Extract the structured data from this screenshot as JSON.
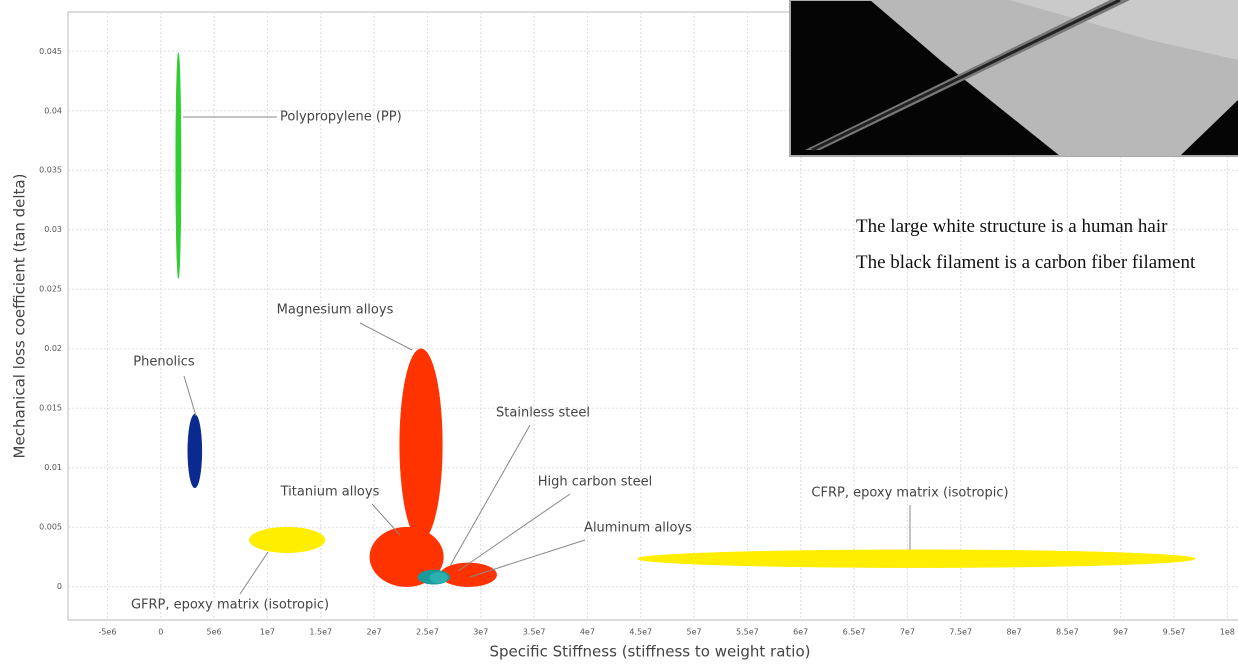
{
  "chart_data": {
    "type": "ellipse",
    "xlabel": "Specific Stiffness (stiffness to weight ratio)",
    "ylabel": "Mechanical loss coefficient (tan delta)",
    "xlim": [
      -8700000,
      101000000
    ],
    "ylim": [
      -0.0028,
      0.0483
    ],
    "xticks": [
      {
        "value": -5000000,
        "label": "-5e6"
      },
      0,
      {
        "value": 5000000,
        "label": "5e6"
      },
      {
        "value": 10000000,
        "label": "1e7"
      },
      {
        "value": 15000000,
        "label": "1.5e7"
      },
      {
        "value": 20000000,
        "label": "2e7"
      },
      {
        "value": 25000000,
        "label": "2.5e7"
      },
      {
        "value": 30000000,
        "label": "3e7"
      },
      {
        "value": 35000000,
        "label": "3.5e7"
      },
      {
        "value": 40000000,
        "label": "4e7"
      },
      {
        "value": 45000000,
        "label": "4.5e7"
      },
      {
        "value": 50000000,
        "label": "5e7"
      },
      {
        "value": 55000000,
        "label": "5.5e7"
      },
      {
        "value": 60000000,
        "label": "6e7"
      },
      {
        "value": 65000000,
        "label": "6.5e7"
      },
      {
        "value": 70000000,
        "label": "7e7"
      },
      {
        "value": 75000000,
        "label": "7.5e7"
      },
      {
        "value": 80000000,
        "label": "8e7"
      },
      {
        "value": 85000000,
        "label": "8.5e7"
      },
      {
        "value": 90000000,
        "label": "9e7"
      },
      {
        "value": 95000000,
        "label": "9.5e7"
      },
      {
        "value": 100000000,
        "label": "1e8"
      }
    ],
    "yticks": [
      0,
      0.005,
      0.01,
      0.015,
      0.02,
      0.025,
      0.03,
      0.035,
      0.04,
      0.045
    ],
    "grid": true,
    "series": [
      {
        "name": "Polypropylene (PP)",
        "color": "#33cc33",
        "x_range": [
          1400000,
          1900000
        ],
        "y_range": [
          0.0259,
          0.0449
        ]
      },
      {
        "name": "Phenolics",
        "color": "#0a2a8f",
        "x_range": [
          2530000,
          3850000
        ],
        "y_range": [
          0.0083,
          0.0145
        ]
      },
      {
        "name": "Magnesium alloys",
        "color": "#ff3300",
        "x_range": [
          22400000,
          26400000
        ],
        "y_range": [
          0.0039,
          0.02
        ]
      },
      {
        "name": "Titanium alloys",
        "color": "#ff3300",
        "x_range": [
          19600000,
          26500000
        ],
        "y_range": [
          0,
          0.005
        ]
      },
      {
        "name": "High carbon steel",
        "color": "#ff3300",
        "x_range": [
          26200000,
          31500000
        ],
        "y_range": [
          0,
          0.002
        ]
      },
      {
        "name": "Stainless steel",
        "color": "#1a9a9a",
        "x_range": [
          24100000,
          27100000
        ],
        "y_range": [
          0.0002,
          0.0014
        ]
      },
      {
        "name": "Aluminum alloys",
        "color": "#2bb0b0",
        "x_range": [
          25200000,
          26900000
        ],
        "y_range": [
          0.0003,
          0.0012
        ]
      },
      {
        "name": "GFRP, epoxy matrix (isotropic)",
        "color": "#ffee00",
        "x_range": [
          8300000,
          15400000
        ],
        "y_range": [
          0.00285,
          0.005
        ]
      },
      {
        "name": "CFRP, epoxy matrix (isotropic)",
        "color": "#ffee00",
        "x_range": [
          44700000,
          97000000
        ],
        "y_range": [
          0.0016,
          0.0031
        ]
      }
    ]
  },
  "captions": [
    "The large white structure is a human hair",
    "The black filament is a carbon fiber filament"
  ]
}
